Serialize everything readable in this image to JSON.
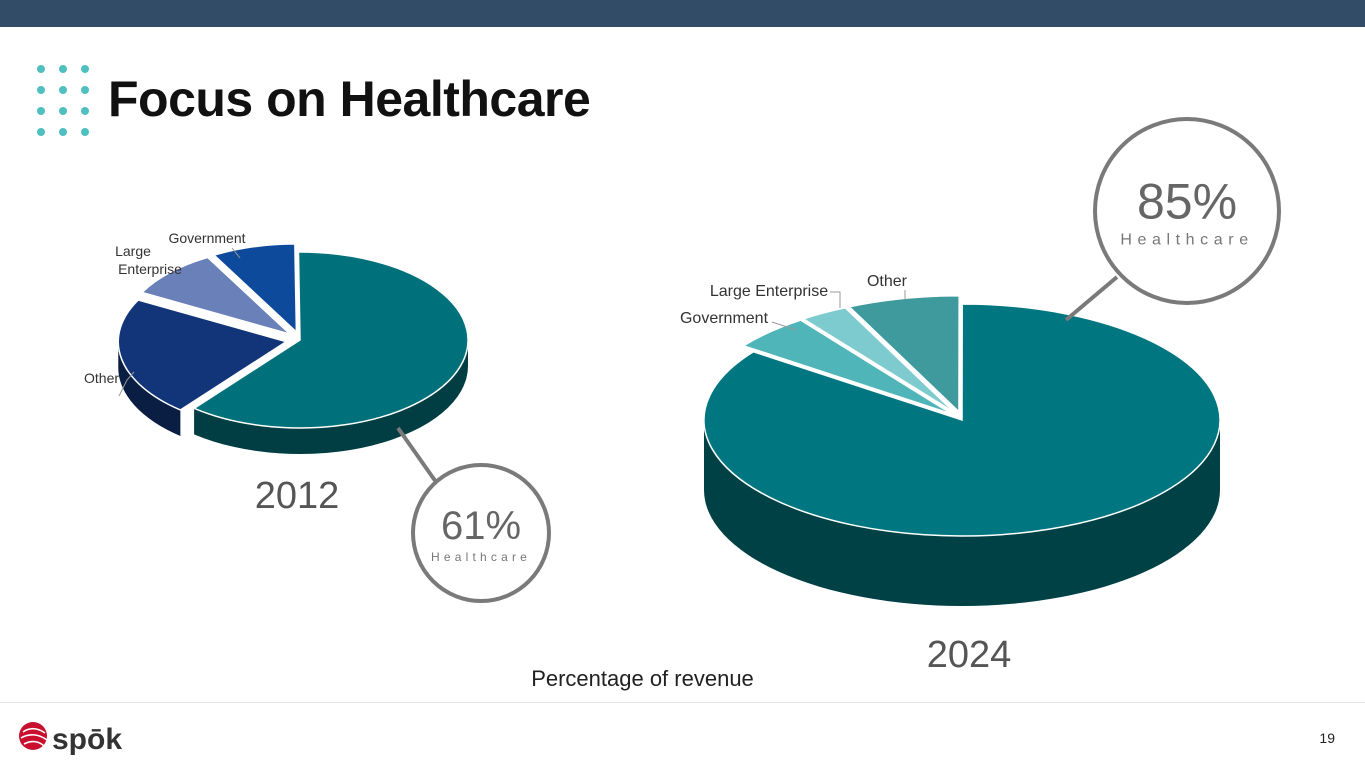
{
  "header": {
    "title": "Focus on Healthcare"
  },
  "footer": {
    "subtitle": "Percentage of revenue",
    "page_number": "19",
    "logo_text": "spōk"
  },
  "colors": {
    "bar": "#324b67",
    "accent": "#4fbfbf",
    "healthcare": "#007b84",
    "callout": "#7a7a7a"
  },
  "chart_data": [
    {
      "type": "pie",
      "title": "2012",
      "callout": {
        "value": "61%",
        "label": "Healthcare"
      },
      "slices": [
        {
          "name": "Healthcare",
          "value": 61,
          "color": "#00717a",
          "label": ""
        },
        {
          "name": "Other",
          "value": 22,
          "color": "#12357a",
          "label": "Other"
        },
        {
          "name": "Large Enterprise",
          "value": 9,
          "color": "#6a80b8",
          "label": "Large Enterprise"
        },
        {
          "name": "Government",
          "value": 8,
          "color": "#0e4a9c",
          "label": "Government"
        }
      ]
    },
    {
      "type": "pie",
      "title": "2024",
      "callout": {
        "value": "85%",
        "label": "Healthcare"
      },
      "slices": [
        {
          "name": "Healthcare",
          "value": 85,
          "color": "#007680",
          "label": ""
        },
        {
          "name": "Government",
          "value": 5,
          "color": "#4fb5b8",
          "label": "Government"
        },
        {
          "name": "Large Enterprise",
          "value": 3,
          "color": "#7ecbcf",
          "label": "Large Enterprise"
        },
        {
          "name": "Other",
          "value": 7,
          "color": "#3f9a9e",
          "label": "Other"
        }
      ]
    }
  ]
}
